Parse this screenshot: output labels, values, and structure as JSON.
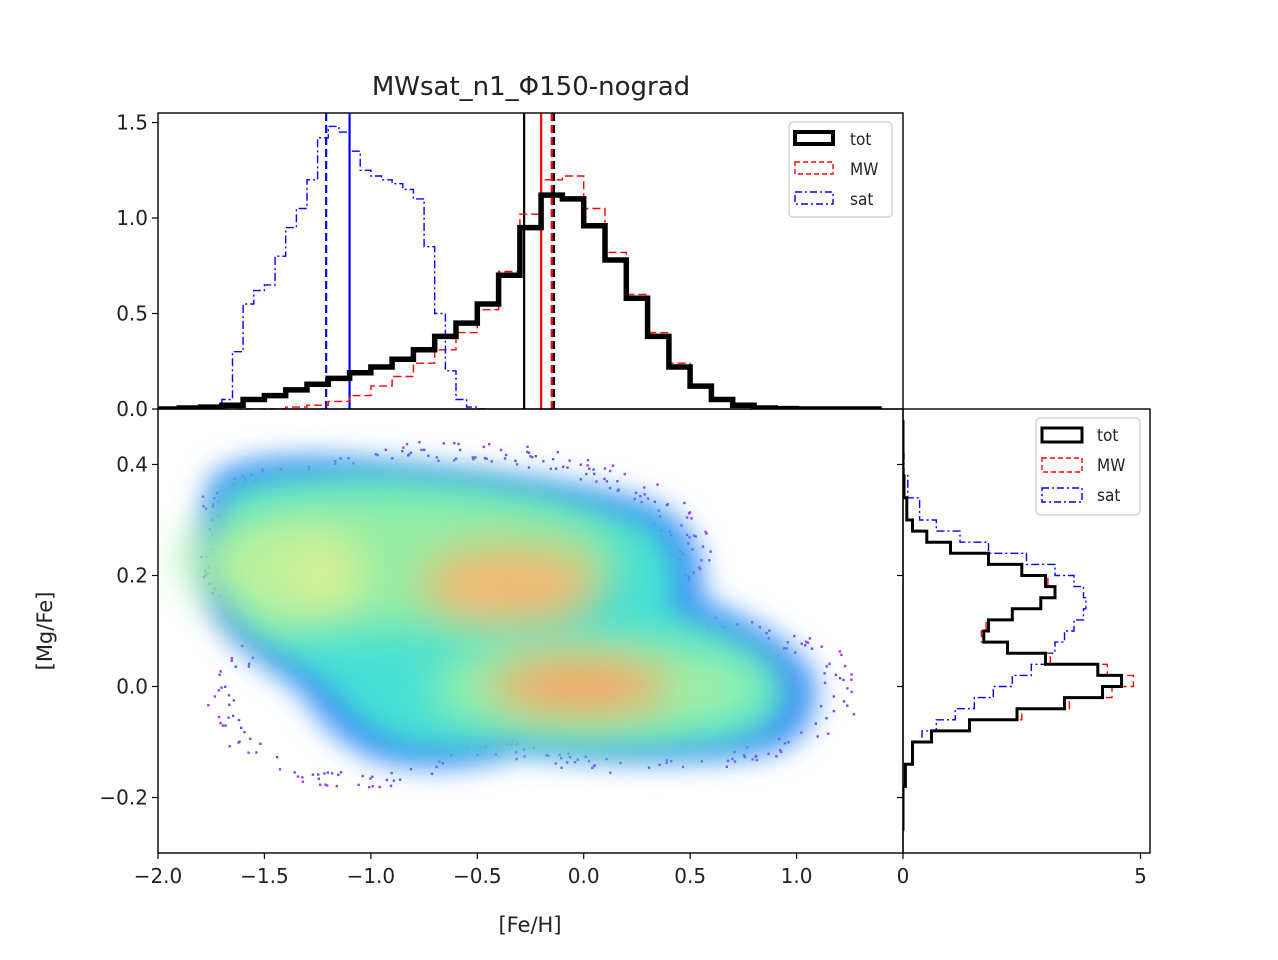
{
  "chart_data": [
    {
      "id": "top-histogram",
      "type": "histogram-step",
      "title": "MWsat_n1_Φ150-nograd",
      "xlabel": "",
      "ylabel": "",
      "xlim": [
        -2.0,
        1.5
      ],
      "ylim": [
        0.0,
        1.55
      ],
      "yticks": [
        0.0,
        0.5,
        1.0,
        1.5
      ],
      "ytick_labels": [
        "0.0",
        "0.5",
        "1.0",
        "1.5"
      ],
      "legend_position": "top-right",
      "series": [
        {
          "name": "tot",
          "style": "solid",
          "color": "#000000",
          "x": [
            -2.0,
            -1.9,
            -1.8,
            -1.7,
            -1.6,
            -1.5,
            -1.4,
            -1.3,
            -1.2,
            -1.1,
            -1.0,
            -0.9,
            -0.8,
            -0.7,
            -0.6,
            -0.5,
            -0.4,
            -0.3,
            -0.2,
            -0.1,
            0.0,
            0.1,
            0.2,
            0.3,
            0.4,
            0.5,
            0.6,
            0.7,
            0.8,
            0.9,
            1.0,
            1.1,
            1.2,
            1.3
          ],
          "values": [
            0.0,
            0.005,
            0.01,
            0.02,
            0.05,
            0.07,
            0.1,
            0.13,
            0.16,
            0.19,
            0.22,
            0.26,
            0.31,
            0.38,
            0.45,
            0.55,
            0.7,
            0.95,
            1.12,
            1.1,
            0.96,
            0.78,
            0.58,
            0.38,
            0.22,
            0.12,
            0.05,
            0.02,
            0.005,
            0.002,
            0.0,
            0.0,
            0.0,
            0.0
          ]
        },
        {
          "name": "MW",
          "style": "dashed",
          "color": "#ff0000",
          "x": [
            -1.7,
            -1.6,
            -1.5,
            -1.4,
            -1.3,
            -1.2,
            -1.1,
            -1.0,
            -0.9,
            -0.8,
            -0.7,
            -0.6,
            -0.5,
            -0.4,
            -0.3,
            -0.2,
            -0.1,
            0.0,
            0.1,
            0.2,
            0.3,
            0.4,
            0.5,
            0.6,
            0.7,
            0.8,
            0.9,
            1.0
          ],
          "values": [
            0.0,
            0.0,
            0.0,
            0.01,
            0.02,
            0.04,
            0.07,
            0.12,
            0.17,
            0.24,
            0.31,
            0.4,
            0.52,
            0.72,
            1.02,
            1.2,
            1.22,
            1.05,
            0.82,
            0.6,
            0.4,
            0.24,
            0.12,
            0.05,
            0.02,
            0.005,
            0.0,
            0.0
          ]
        },
        {
          "name": "sat",
          "style": "dashdot",
          "color": "#0000ff",
          "x": [
            -1.75,
            -1.7,
            -1.65,
            -1.6,
            -1.55,
            -1.5,
            -1.45,
            -1.4,
            -1.35,
            -1.3,
            -1.25,
            -1.2,
            -1.15,
            -1.1,
            -1.05,
            -1.0,
            -0.95,
            -0.9,
            -0.85,
            -0.8,
            -0.75,
            -0.7,
            -0.65,
            -0.6,
            -0.55,
            -0.5
          ],
          "values": [
            0.0,
            0.05,
            0.3,
            0.55,
            0.62,
            0.65,
            0.8,
            0.95,
            1.05,
            1.2,
            1.42,
            1.48,
            1.45,
            1.35,
            1.25,
            1.22,
            1.2,
            1.18,
            1.15,
            1.1,
            0.85,
            0.5,
            0.2,
            0.05,
            0.01,
            0.0
          ]
        }
      ],
      "vlines": [
        {
          "x": -1.21,
          "color": "#0000ff",
          "style": "dashed"
        },
        {
          "x": -1.1,
          "color": "#0000ff",
          "style": "solid"
        },
        {
          "x": -0.28,
          "color": "#000000",
          "style": "solid"
        },
        {
          "x": -0.2,
          "color": "#ff0000",
          "style": "solid"
        },
        {
          "x": -0.15,
          "color": "#ff0000",
          "style": "dashed"
        },
        {
          "x": -0.14,
          "color": "#000000",
          "style": "dashed"
        }
      ]
    },
    {
      "id": "density-2d",
      "type": "heatmap",
      "xlabel": "[Fe/H]",
      "ylabel": "[Mg/Fe]",
      "xlim": [
        -2.0,
        1.5
      ],
      "ylim": [
        -0.3,
        0.5
      ],
      "xticks": [
        -2.0,
        -1.5,
        -1.0,
        -0.5,
        0.0,
        0.5,
        1.0
      ],
      "xtick_labels": [
        "−2.0",
        "−1.5",
        "−1.0",
        "−0.5",
        "0.0",
        "0.5",
        "1.0"
      ],
      "yticks": [
        -0.2,
        0.0,
        0.2,
        0.4
      ],
      "ytick_labels": [
        "−0.2",
        "0.0",
        "0.2",
        "0.4"
      ],
      "colormap": "rainbow",
      "peaks": [
        {
          "feh": 0.0,
          "mgfe": 0.0,
          "level": "high"
        },
        {
          "feh": -0.25,
          "mgfe": 0.18,
          "level": "high"
        },
        {
          "feh": -1.2,
          "mgfe": 0.22,
          "level": "medium"
        }
      ]
    },
    {
      "id": "side-histogram",
      "type": "histogram-step-horizontal",
      "xlabel": "",
      "ylabel": "",
      "xlim": [
        0,
        5.2
      ],
      "ylim": [
        -0.3,
        0.5
      ],
      "xticks": [
        0,
        5
      ],
      "xtick_labels": [
        "0",
        "5"
      ],
      "legend_position": "top-right",
      "series": [
        {
          "name": "tot",
          "style": "solid",
          "color": "#000000",
          "y": [
            -0.26,
            -0.22,
            -0.18,
            -0.14,
            -0.1,
            -0.08,
            -0.06,
            -0.04,
            -0.02,
            0.0,
            0.02,
            0.04,
            0.06,
            0.08,
            0.1,
            0.12,
            0.14,
            0.16,
            0.18,
            0.2,
            0.22,
            0.24,
            0.26,
            0.28,
            0.3,
            0.34,
            0.38,
            0.42,
            0.44
          ],
          "values": [
            0.0,
            0.0,
            0.05,
            0.2,
            0.6,
            1.4,
            2.4,
            3.4,
            4.2,
            4.6,
            4.1,
            3.0,
            2.2,
            1.7,
            1.8,
            2.3,
            2.9,
            3.2,
            3.0,
            2.5,
            1.8,
            1.0,
            0.5,
            0.2,
            0.08,
            0.02,
            0.0,
            0.0,
            0.0
          ]
        },
        {
          "name": "MW",
          "style": "dashed",
          "color": "#ff0000",
          "y": [
            -0.26,
            -0.22,
            -0.18,
            -0.14,
            -0.1,
            -0.08,
            -0.06,
            -0.04,
            -0.02,
            0.0,
            0.02,
            0.04,
            0.06,
            0.08,
            0.1,
            0.12,
            0.14,
            0.16,
            0.18,
            0.2,
            0.22,
            0.24,
            0.26,
            0.28,
            0.3,
            0.34,
            0.38,
            0.42,
            0.44
          ],
          "values": [
            0.0,
            0.0,
            0.05,
            0.2,
            0.6,
            1.4,
            2.5,
            3.5,
            4.4,
            4.85,
            4.3,
            3.1,
            2.2,
            1.65,
            1.75,
            2.3,
            2.9,
            3.2,
            3.05,
            2.5,
            1.8,
            1.0,
            0.5,
            0.2,
            0.08,
            0.02,
            0.0,
            0.0,
            0.0
          ]
        },
        {
          "name": "sat",
          "style": "dashdot",
          "color": "#0000ff",
          "y": [
            -0.26,
            -0.22,
            -0.18,
            -0.14,
            -0.1,
            -0.08,
            -0.06,
            -0.04,
            -0.02,
            0.0,
            0.02,
            0.04,
            0.06,
            0.08,
            0.1,
            0.12,
            0.14,
            0.16,
            0.18,
            0.2,
            0.22,
            0.24,
            0.26,
            0.28,
            0.3,
            0.34,
            0.38,
            0.42,
            0.44
          ],
          "values": [
            0.0,
            0.0,
            0.05,
            0.2,
            0.4,
            0.7,
            1.1,
            1.5,
            1.9,
            2.3,
            2.7,
            3.0,
            3.2,
            3.4,
            3.6,
            3.8,
            3.85,
            3.8,
            3.6,
            3.2,
            2.6,
            1.8,
            1.2,
            0.7,
            0.35,
            0.1,
            0.02,
            0.0,
            0.0
          ]
        }
      ]
    }
  ]
}
